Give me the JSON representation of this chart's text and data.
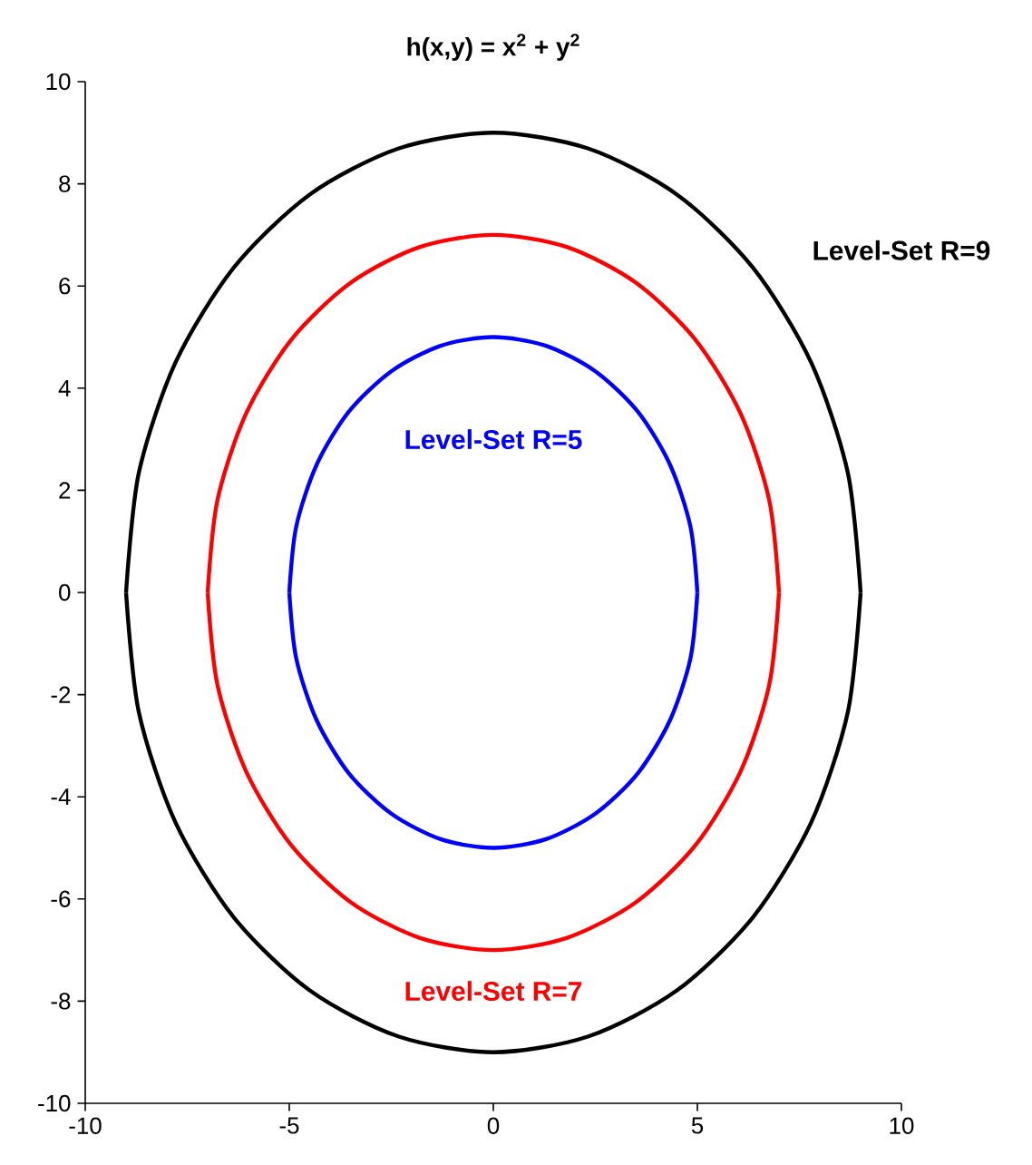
{
  "chart_data": {
    "type": "line",
    "title": "h(x,y) = x$^{2}$ + y$^{2}$",
    "xlim": [
      -10,
      10
    ],
    "xticks": [
      -10,
      -5,
      0,
      5,
      10
    ],
    "ylim": [
      -10,
      10
    ],
    "yticks": [
      -10,
      -8,
      -6,
      -4,
      -2,
      0,
      2,
      4,
      6,
      8,
      10
    ],
    "marker": "none",
    "line_style": "solid",
    "series": [
      {
        "name": "Level-Set R=5",
        "color": "#0000ff",
        "x": [
          -5,
          -4.83,
          -4.33,
          -3.54,
          -2.5,
          -1.29,
          0,
          1.29,
          2.5,
          3.54,
          4.33,
          4.83,
          5,
          null,
          5,
          4.83,
          4.33,
          3.54,
          2.5,
          1.29,
          0,
          -1.29,
          -2.5,
          -3.54,
          -4.33,
          -4.83,
          -5
        ],
        "values": [
          0,
          1.29,
          2.5,
          3.54,
          4.33,
          4.83,
          5,
          4.83,
          4.33,
          3.54,
          2.5,
          1.29,
          0,
          null,
          0,
          -1.29,
          -2.5,
          -3.54,
          -4.33,
          -4.83,
          -5,
          -4.83,
          -4.33,
          -3.54,
          -2.5,
          -1.29,
          0
        ]
      },
      {
        "name": "Level-Set R=7",
        "color": "#ff0000",
        "x": [
          -7,
          -6.76,
          -6.06,
          -4.95,
          -3.5,
          -1.81,
          0,
          1.81,
          3.5,
          4.95,
          6.06,
          6.76,
          7,
          null,
          7,
          6.76,
          6.06,
          4.95,
          3.5,
          1.81,
          0,
          -1.81,
          -3.5,
          -4.95,
          -6.06,
          -6.76,
          -7
        ],
        "values": [
          0,
          1.81,
          3.5,
          4.95,
          6.06,
          6.76,
          7,
          6.76,
          6.06,
          4.95,
          3.5,
          1.81,
          0,
          null,
          0,
          -1.81,
          -3.5,
          -4.95,
          -6.06,
          -6.76,
          -7,
          -6.76,
          -6.06,
          -4.95,
          -3.5,
          -1.81,
          0
        ]
      },
      {
        "name": "Level-Set R=9",
        "color": "#000000",
        "x": [
          -9,
          -8.69,
          -7.79,
          -6.36,
          -4.5,
          -2.33,
          0,
          2.33,
          4.5,
          6.36,
          7.79,
          8.69,
          9,
          null,
          9,
          8.69,
          7.79,
          6.36,
          4.5,
          2.33,
          0,
          -2.33,
          -4.5,
          -6.36,
          -7.79,
          -8.69,
          -9
        ],
        "values": [
          0,
          2.33,
          4.5,
          6.36,
          7.79,
          8.69,
          9,
          8.69,
          7.79,
          6.36,
          4.5,
          2.33,
          0,
          null,
          0,
          -2.33,
          -4.5,
          -6.36,
          -7.79,
          -8.69,
          -9,
          -8.69,
          -7.79,
          -6.36,
          -4.5,
          -2.33,
          0
        ]
      }
    ]
  }
}
